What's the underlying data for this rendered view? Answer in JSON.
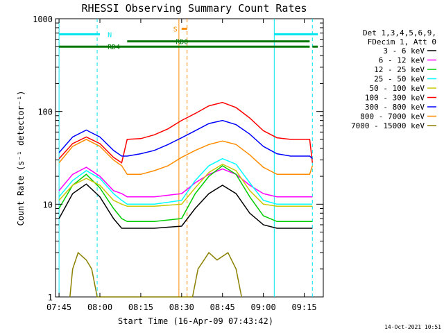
{
  "chart_data": {
    "type": "line",
    "title": "RHESSI Observing Summary Count Rates",
    "xlabel": "Start Time (16-Apr-09 07:43:42)",
    "ylabel": "Count Rate (s⁻¹ detector⁻¹)",
    "y_scale": "log",
    "ylim": [
      1,
      1000
    ],
    "xlim": [
      "07:43:42",
      "09:22:00"
    ],
    "x_ticks": [
      "07:45",
      "08:00",
      "08:15",
      "08:30",
      "08:45",
      "09:00",
      "09:15"
    ],
    "y_ticks": [
      "1",
      "10",
      "100",
      "1000"
    ],
    "timestamp": "14-Oct-2021 10:51",
    "legend_header": [
      "Det 1,3,4,5,6,9,",
      "FDecim 1, Att 0"
    ],
    "legend_placement": "right",
    "series": [
      {
        "name": "3 - 6 keV",
        "color": "#000000",
        "values": [
          [
            "07:45",
            7
          ],
          [
            "07:50",
            13
          ],
          [
            "07:55",
            16.5
          ],
          [
            "08:00",
            12
          ],
          [
            "08:05",
            7
          ],
          [
            "08:08",
            5.5
          ],
          [
            "08:10",
            5.5
          ],
          [
            "08:20",
            5.5
          ],
          [
            "08:30",
            5.8
          ],
          [
            "08:35",
            9
          ],
          [
            "08:40",
            13
          ],
          [
            "08:45",
            16
          ],
          [
            "08:50",
            13
          ],
          [
            "08:55",
            8
          ],
          [
            "09:00",
            6
          ],
          [
            "09:05",
            5.5
          ],
          [
            "09:15",
            5.5
          ],
          [
            "09:18",
            5.5
          ]
        ]
      },
      {
        "name": "6 - 12 keV",
        "color": "#ff00ff",
        "values": [
          [
            "07:45",
            14
          ],
          [
            "07:50",
            21
          ],
          [
            "07:55",
            25
          ],
          [
            "08:00",
            20
          ],
          [
            "08:05",
            14
          ],
          [
            "08:08",
            13
          ],
          [
            "08:10",
            12
          ],
          [
            "08:20",
            12
          ],
          [
            "08:30",
            13
          ],
          [
            "08:35",
            17
          ],
          [
            "08:40",
            21
          ],
          [
            "08:45",
            24
          ],
          [
            "08:50",
            21
          ],
          [
            "08:55",
            16
          ],
          [
            "09:00",
            13
          ],
          [
            "09:05",
            12
          ],
          [
            "09:15",
            12
          ],
          [
            "09:18",
            12
          ]
        ]
      },
      {
        "name": "12 - 25 keV",
        "color": "#00cc00",
        "values": [
          [
            "07:45",
            9
          ],
          [
            "07:50",
            16
          ],
          [
            "07:55",
            21
          ],
          [
            "08:00",
            15
          ],
          [
            "08:05",
            9
          ],
          [
            "08:08",
            7
          ],
          [
            "08:10",
            6.5
          ],
          [
            "08:20",
            6.5
          ],
          [
            "08:30",
            7
          ],
          [
            "08:35",
            13
          ],
          [
            "08:40",
            20
          ],
          [
            "08:45",
            26
          ],
          [
            "08:50",
            21
          ],
          [
            "08:55",
            12
          ],
          [
            "09:00",
            7.5
          ],
          [
            "09:05",
            6.5
          ],
          [
            "09:15",
            6.5
          ],
          [
            "09:18",
            6.5
          ]
        ]
      },
      {
        "name": "25 - 50 keV",
        "color": "#00ffff",
        "values": [
          [
            "07:45",
            12
          ],
          [
            "07:50",
            18
          ],
          [
            "07:55",
            23
          ],
          [
            "08:00",
            19
          ],
          [
            "08:05",
            13
          ],
          [
            "08:08",
            11
          ],
          [
            "08:10",
            10
          ],
          [
            "08:20",
            10
          ],
          [
            "08:30",
            11
          ],
          [
            "08:35",
            18
          ],
          [
            "08:40",
            26
          ],
          [
            "08:45",
            31
          ],
          [
            "08:50",
            27
          ],
          [
            "08:55",
            17
          ],
          [
            "09:00",
            11
          ],
          [
            "09:05",
            10
          ],
          [
            "09:15",
            10
          ],
          [
            "09:18",
            10
          ]
        ]
      },
      {
        "name": "50 - 100 keV",
        "color": "#c8c800",
        "values": [
          [
            "07:45",
            11
          ],
          [
            "07:50",
            16
          ],
          [
            "07:55",
            19
          ],
          [
            "08:00",
            16
          ],
          [
            "08:05",
            11
          ],
          [
            "08:08",
            10
          ],
          [
            "08:10",
            9.5
          ],
          [
            "08:20",
            9.5
          ],
          [
            "08:30",
            10
          ],
          [
            "08:35",
            15
          ],
          [
            "08:40",
            22
          ],
          [
            "08:45",
            27
          ],
          [
            "08:50",
            23
          ],
          [
            "08:55",
            14
          ],
          [
            "09:00",
            10
          ],
          [
            "09:05",
            9.5
          ],
          [
            "09:15",
            9.5
          ],
          [
            "09:18",
            9.5
          ]
        ]
      },
      {
        "name": "100 - 300 keV",
        "color": "#ff0000",
        "values": [
          [
            "07:45",
            31
          ],
          [
            "07:50",
            45
          ],
          [
            "07:55",
            53
          ],
          [
            "08:00",
            45
          ],
          [
            "08:05",
            32
          ],
          [
            "08:08",
            28
          ],
          [
            "08:10",
            50
          ],
          [
            "08:15",
            51
          ],
          [
            "08:20",
            56
          ],
          [
            "08:25",
            65
          ],
          [
            "08:30",
            80
          ],
          [
            "08:35",
            95
          ],
          [
            "08:40",
            115
          ],
          [
            "08:45",
            125
          ],
          [
            "08:50",
            110
          ],
          [
            "08:55",
            85
          ],
          [
            "09:00",
            62
          ],
          [
            "09:05",
            52
          ],
          [
            "09:10",
            50
          ],
          [
            "09:15",
            50
          ],
          [
            "09:17",
            50
          ],
          [
            "09:18",
            28
          ]
        ]
      },
      {
        "name": "300 - 800 keV",
        "color": "#0000ff",
        "values": [
          [
            "07:45",
            36
          ],
          [
            "07:50",
            53
          ],
          [
            "07:55",
            63
          ],
          [
            "08:00",
            53
          ],
          [
            "08:05",
            38
          ],
          [
            "08:08",
            33
          ],
          [
            "08:10",
            33
          ],
          [
            "08:15",
            35
          ],
          [
            "08:20",
            38
          ],
          [
            "08:25",
            44
          ],
          [
            "08:30",
            52
          ],
          [
            "08:35",
            62
          ],
          [
            "08:40",
            74
          ],
          [
            "08:45",
            80
          ],
          [
            "08:50",
            72
          ],
          [
            "08:55",
            57
          ],
          [
            "09:00",
            42
          ],
          [
            "09:05",
            35
          ],
          [
            "09:10",
            33
          ],
          [
            "09:15",
            33
          ],
          [
            "09:17",
            33
          ],
          [
            "09:18",
            31
          ]
        ]
      },
      {
        "name": "800 - 7000 keV",
        "color": "#ff8c00",
        "values": [
          [
            "07:45",
            28
          ],
          [
            "07:50",
            42
          ],
          [
            "07:55",
            50
          ],
          [
            "08:00",
            42
          ],
          [
            "08:05",
            30
          ],
          [
            "08:08",
            26
          ],
          [
            "08:10",
            21
          ],
          [
            "08:15",
            21
          ],
          [
            "08:20",
            23
          ],
          [
            "08:25",
            26
          ],
          [
            "08:30",
            32
          ],
          [
            "08:35",
            38
          ],
          [
            "08:40",
            44
          ],
          [
            "08:45",
            48
          ],
          [
            "08:50",
            44
          ],
          [
            "08:55",
            34
          ],
          [
            "09:00",
            25
          ],
          [
            "09:05",
            21
          ],
          [
            "09:10",
            21
          ],
          [
            "09:15",
            21
          ],
          [
            "09:17",
            21
          ],
          [
            "09:18",
            26
          ]
        ]
      },
      {
        "name": "7000 - 15000 keV",
        "color": "#8b8000",
        "values": [
          [
            "07:49",
            1
          ],
          [
            "07:50",
            2
          ],
          [
            "07:52",
            3
          ],
          [
            "07:55",
            2.5
          ],
          [
            "07:57",
            2
          ],
          [
            "07:59",
            1
          ],
          [
            "08:34",
            1
          ],
          [
            "08:36",
            2
          ],
          [
            "08:40",
            3
          ],
          [
            "08:43",
            2.5
          ],
          [
            "08:47",
            3
          ],
          [
            "08:50",
            2
          ],
          [
            "08:52",
            1
          ]
        ]
      }
    ],
    "annotations": {
      "bars": [
        {
          "label": "N",
          "color": "#00e5ee",
          "intervals": [
            [
              "07:45",
              "08:00"
            ],
            [
              "09:04",
              "09:20"
            ]
          ],
          "level": 680
        },
        {
          "label": "S",
          "color": "#ff8c00",
          "intervals": [
            [
              "08:30",
              "08:32"
            ]
          ],
          "level": 780
        },
        {
          "label": "RD0",
          "color": "#007700",
          "intervals": [
            [
              "08:10",
              "09:17"
            ]
          ],
          "level": 570
        },
        {
          "label": "RD4",
          "color": "#007700",
          "intervals": [
            [
              "07:45",
              "09:17"
            ],
            [
              "09:18",
              "09:20"
            ]
          ],
          "level": 500
        }
      ],
      "vlines": [
        {
          "time": "07:45",
          "color": "#00e5ee",
          "style": "solid"
        },
        {
          "time": "07:59",
          "color": "#00e5ee",
          "style": "dashed"
        },
        {
          "time": "08:29",
          "color": "#ff8c00",
          "style": "solid"
        },
        {
          "time": "08:32",
          "color": "#ff8c00",
          "style": "dashed"
        },
        {
          "time": "09:04",
          "color": "#00e5ee",
          "style": "solid"
        },
        {
          "time": "09:18",
          "color": "#00e5ee",
          "style": "dashed"
        }
      ]
    }
  }
}
